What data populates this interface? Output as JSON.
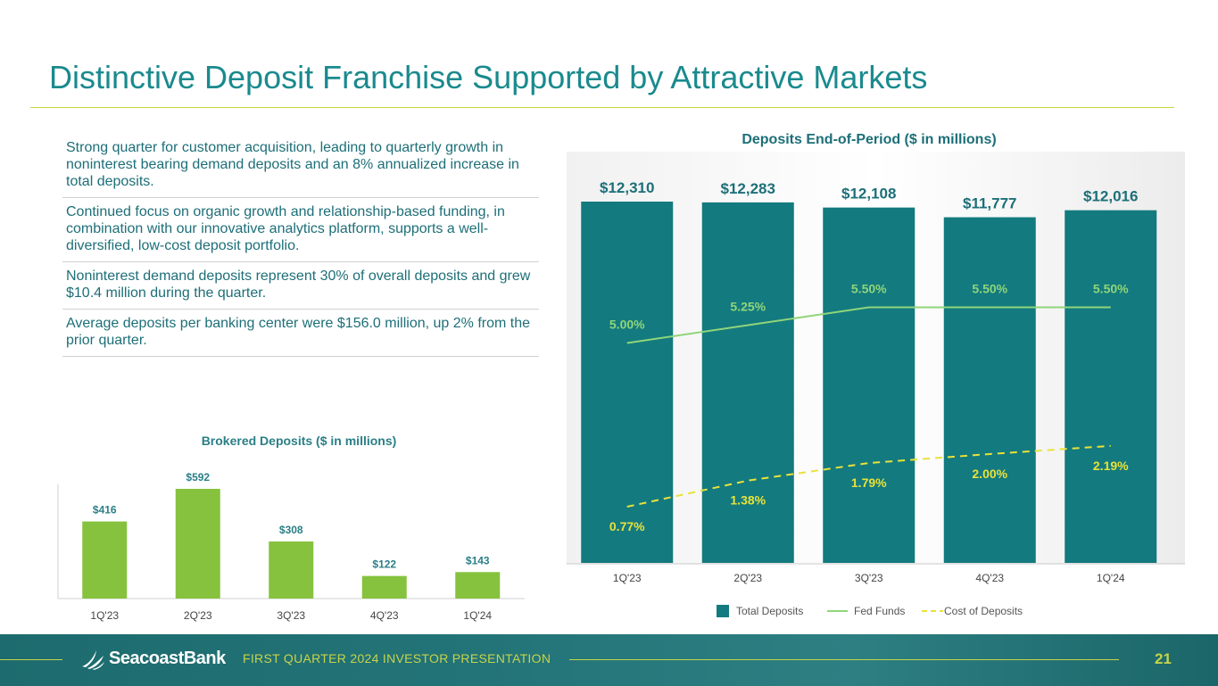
{
  "title": "Distinctive Deposit Franchise Supported by Attractive Markets",
  "bullets": [
    "Strong quarter for customer acquisition, leading to quarterly growth in noninterest bearing demand deposits and an 8% annualized increase in total deposits.",
    "Continued focus on organic growth and relationship-based funding, in combination with our innovative analytics platform, supports a well-diversified, low-cost deposit portfolio.",
    "Noninterest demand deposits represent 30% of overall deposits and grew $10.4 million during the quarter.",
    "Average deposits per banking center were $156.0 million, up 2% from the prior quarter."
  ],
  "footer": {
    "logo_text": "SeacoastBank",
    "presentation": "FIRST QUARTER 2024 INVESTOR PRESENTATION",
    "page_number": "21"
  },
  "colors": {
    "title": "#1a8a8e",
    "total_deposits": "#137a7f",
    "fed_funds": "#8fd57a",
    "cost_of_deposits": "#e8e23a",
    "brokered": "#86c23e"
  },
  "chart_data": [
    {
      "type": "bar",
      "title": "Brokered Deposits ($ in millions)",
      "categories": [
        "1Q'23",
        "2Q'23",
        "3Q'23",
        "4Q'23",
        "1Q'24"
      ],
      "values": [
        416,
        592,
        308,
        122,
        143
      ],
      "data_labels": [
        "$416",
        "$592",
        "$308",
        "$122",
        "$143"
      ],
      "ylim": [
        0,
        600
      ]
    },
    {
      "type": "bar",
      "title": "Deposits End-of-Period ($ in millions)",
      "categories": [
        "1Q'23",
        "2Q'23",
        "3Q'23",
        "4Q'23",
        "1Q'24"
      ],
      "series": [
        {
          "name": "Total Deposits",
          "type": "bar",
          "values": [
            12310,
            12283,
            12108,
            11777,
            12016
          ],
          "labels": [
            "$12,310",
            "$12,283",
            "$12,108",
            "$11,777",
            "$12,016"
          ]
        },
        {
          "name": "Fed Funds",
          "type": "line",
          "values": [
            5.0,
            5.25,
            5.5,
            5.5,
            5.5
          ],
          "labels": [
            "5.00%",
            "5.25%",
            "5.50%",
            "5.50%",
            "5.50%"
          ]
        },
        {
          "name": "Cost of Deposits",
          "type": "line",
          "style": "dashed",
          "values": [
            0.77,
            1.38,
            1.79,
            2.0,
            2.19
          ],
          "labels": [
            "0.77%",
            "1.38%",
            "1.79%",
            "2.00%",
            "2.19%"
          ]
        }
      ],
      "legend": "bottom"
    }
  ]
}
